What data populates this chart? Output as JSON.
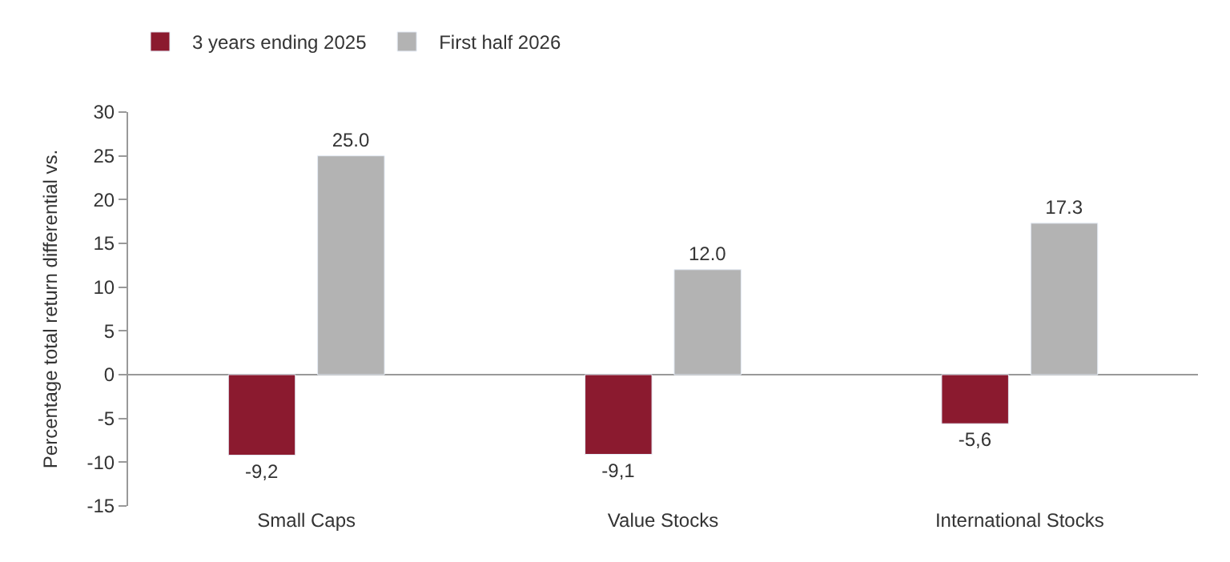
{
  "chart_data": {
    "type": "bar",
    "ylabel": "Percentage total return differential vs.",
    "categories": [
      "Small Caps",
      "Value Stocks",
      "International Stocks"
    ],
    "series": [
      {
        "name": "3 years ending 2025",
        "color": "#8b1a2f",
        "values": [
          -9.2,
          -9.1,
          -5.6
        ],
        "value_labels": [
          "-9,2",
          "-9,1",
          "-5,6"
        ]
      },
      {
        "name": "First half 2026",
        "color": "#b3b3b3",
        "values": [
          25.0,
          12.0,
          17.3
        ],
        "value_labels": [
          "25.0",
          "12.0",
          "17.3"
        ]
      }
    ],
    "ylim": [
      -15,
      30
    ],
    "yticks": [
      -15,
      -10,
      -5,
      0,
      5,
      10,
      15,
      20,
      25,
      30
    ],
    "legend": "top left"
  }
}
